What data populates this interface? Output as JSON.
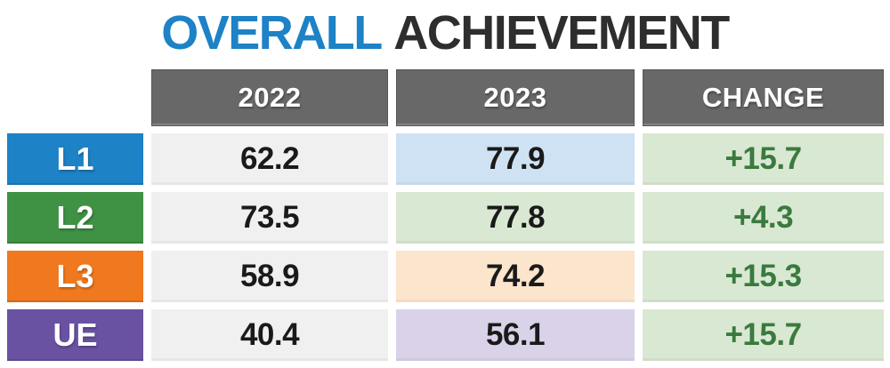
{
  "title": {
    "highlight": "OVERALL",
    "rest": "ACHIEVEMENT"
  },
  "colors": {
    "title_highlight": "#1d82c6",
    "title_rest": "#2e2e2e",
    "header_bg": "#686868",
    "header_text": "#ffffff",
    "value_text": "#1a1a1a",
    "change_text": "#3a7a3e",
    "row_gray_bg": "#f0f0f0",
    "l1_blue": "#1d82c6",
    "l2_green": "#3f9144",
    "l3_orange": "#f0781e",
    "ue_purple": "#6a52a3",
    "light_blue": "#cfe2f3",
    "light_green": "#d9e8d2",
    "light_orange": "#fce5cd",
    "light_purple": "#d9d2e9"
  },
  "table": {
    "headers": [
      "2022",
      "2023",
      "CHANGE"
    ],
    "rows": [
      {
        "label": "L1",
        "label_bg": "#1d82c6",
        "v2022": "62.2",
        "v2022_bg": "#f0f0f0",
        "v2023": "77.9",
        "v2023_bg": "#cfe2f3",
        "change": "+15.7",
        "change_bg": "#d9e8d2"
      },
      {
        "label": "L2",
        "label_bg": "#3f9144",
        "v2022": "73.5",
        "v2022_bg": "#f0f0f0",
        "v2023": "77.8",
        "v2023_bg": "#d9e8d2",
        "change": "+4.3",
        "change_bg": "#d9e8d2"
      },
      {
        "label": "L3",
        "label_bg": "#f0781e",
        "v2022": "58.9",
        "v2022_bg": "#f0f0f0",
        "v2023": "74.2",
        "v2023_bg": "#fce5cd",
        "change": "+15.3",
        "change_bg": "#d9e8d2"
      },
      {
        "label": "UE",
        "label_bg": "#6a52a3",
        "v2022": "40.4",
        "v2022_bg": "#f0f0f0",
        "v2023": "56.1",
        "v2023_bg": "#d9d2e9",
        "change": "+15.7",
        "change_bg": "#d9e8d2"
      }
    ]
  },
  "chart_data": {
    "type": "table",
    "title": "OVERALL ACHIEVEMENT",
    "columns": [
      "2022",
      "2023",
      "CHANGE"
    ],
    "row_labels": [
      "L1",
      "L2",
      "L3",
      "UE"
    ],
    "series": [
      {
        "name": "2022",
        "values": [
          62.2,
          73.5,
          58.9,
          40.4
        ]
      },
      {
        "name": "2023",
        "values": [
          77.9,
          77.8,
          74.2,
          56.1
        ]
      },
      {
        "name": "CHANGE",
        "values": [
          15.7,
          4.3,
          15.3,
          15.7
        ]
      }
    ]
  }
}
